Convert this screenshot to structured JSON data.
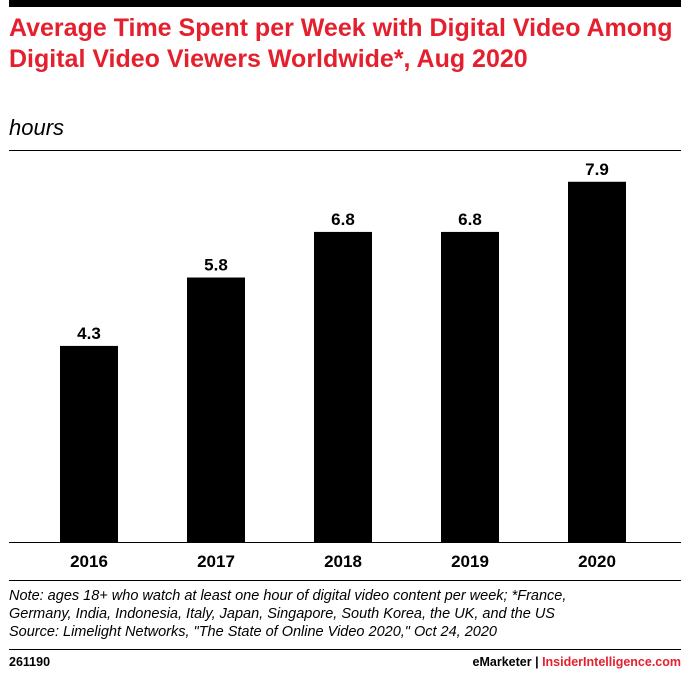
{
  "header": {
    "title": "Average Time Spent per Week with Digital Video Among Digital Video Viewers Worldwide*, Aug 2020",
    "subtitle": "hours"
  },
  "chart_data": {
    "type": "bar",
    "categories": [
      "2016",
      "2017",
      "2018",
      "2019",
      "2020"
    ],
    "values": [
      4.3,
      5.8,
      6.8,
      6.8,
      7.9
    ],
    "value_labels": [
      "4.3",
      "5.8",
      "6.8",
      "6.8",
      "7.9"
    ],
    "title": "Average Time Spent per Week with Digital Video Among Digital Video Viewers Worldwide*, Aug 2020",
    "xlabel": "",
    "ylabel": "",
    "ylim": [
      0,
      8
    ],
    "grid": false,
    "bar_color": "#000000"
  },
  "footer": {
    "note_line1": "Note: ages 18+ who watch at least one hour of digital video content per week; *France,",
    "note_line2": "Germany, India, Indonesia, Italy, Japan, Singapore, South Korea, the UK, and the US",
    "source": "Source: Limelight Networks, \"The State of Online Video 2020,\" Oct 24, 2020",
    "chart_id": "261190",
    "brand_left": "eMarketer",
    "brand_sep": "|",
    "brand_right": "InsiderIntelligence.com"
  },
  "colors": {
    "accent": "#e4202e",
    "text": "#000000"
  }
}
